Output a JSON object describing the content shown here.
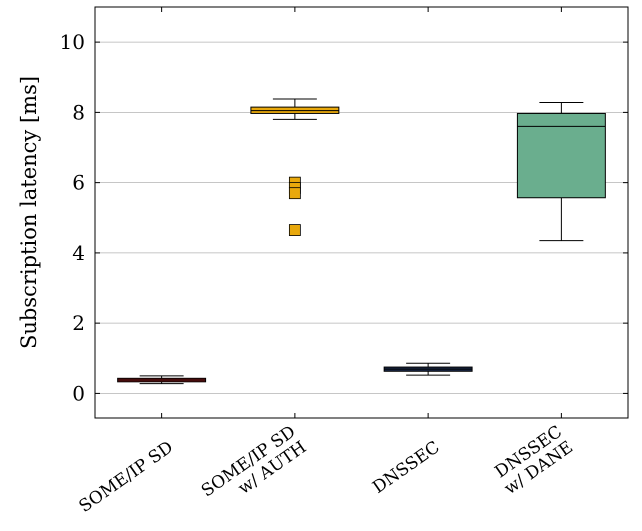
{
  "chart_data": {
    "type": "box",
    "ylabel": "Subscription latency [ms]",
    "ylim": [
      -0.7,
      11
    ],
    "yticks": [
      0,
      2,
      4,
      6,
      8,
      10
    ],
    "grid": "horizontal",
    "categories": [
      [
        "SOME/IP SD"
      ],
      [
        "SOME/IP SD",
        "w/ AUTH"
      ],
      [
        "DNSSEC"
      ],
      [
        "DNSSEC",
        "w/ DANE"
      ]
    ],
    "boxes": [
      {
        "whisker_low": 0.28,
        "q1": 0.33,
        "median": 0.38,
        "q3": 0.43,
        "whisker_high": 0.5,
        "outliers": [],
        "fill": "#8b1a1a"
      },
      {
        "whisker_low": 7.8,
        "q1": 7.97,
        "median": 8.05,
        "q3": 8.15,
        "whisker_high": 8.38,
        "outliers": [
          6.0,
          5.85,
          5.7,
          4.65
        ],
        "fill": "#e8a80c"
      },
      {
        "whisker_low": 0.52,
        "q1": 0.63,
        "median": 0.69,
        "q3": 0.75,
        "whisker_high": 0.86,
        "outliers": [],
        "fill": "#1b2a4a"
      },
      {
        "whisker_low": 4.35,
        "q1": 5.57,
        "median": 7.6,
        "q3": 7.97,
        "whisker_high": 8.28,
        "outliers": [],
        "fill": "#6aae8e"
      }
    ]
  }
}
